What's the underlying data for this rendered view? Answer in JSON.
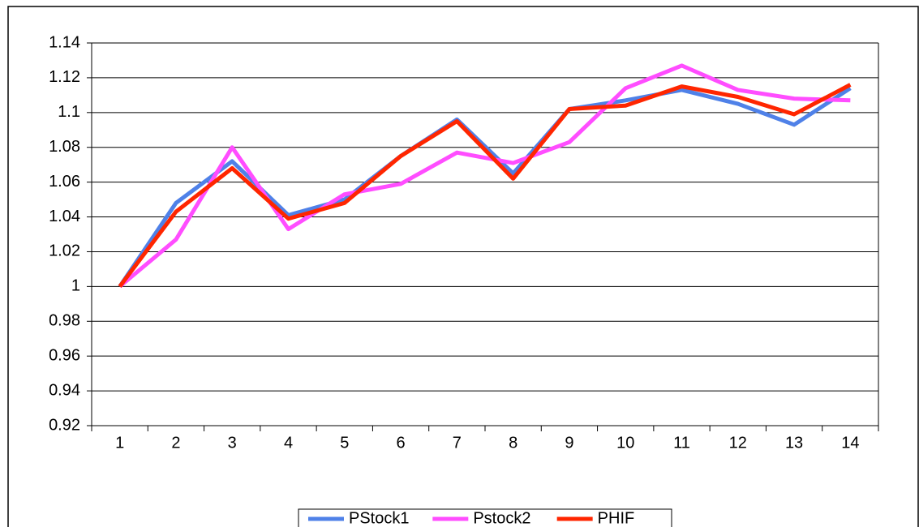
{
  "chart_data": {
    "type": "line",
    "categories": [
      "1",
      "2",
      "3",
      "4",
      "5",
      "6",
      "7",
      "8",
      "9",
      "10",
      "11",
      "12",
      "13",
      "14"
    ],
    "series": [
      {
        "name": "PStock1",
        "color": "#4f81e8",
        "values": [
          1.0,
          1.048,
          1.072,
          1.041,
          1.05,
          1.075,
          1.096,
          1.065,
          1.102,
          1.107,
          1.113,
          1.105,
          1.093,
          1.114
        ]
      },
      {
        "name": "Pstock2",
        "color": "#ff4dff",
        "values": [
          1.0,
          1.027,
          1.08,
          1.033,
          1.053,
          1.059,
          1.077,
          1.071,
          1.083,
          1.114,
          1.127,
          1.113,
          1.108,
          1.107
        ]
      },
      {
        "name": "PHIF",
        "color": "#ff2600",
        "values": [
          1.0,
          1.043,
          1.068,
          1.039,
          1.048,
          1.075,
          1.095,
          1.062,
          1.102,
          1.104,
          1.115,
          1.109,
          1.099,
          1.116
        ]
      }
    ],
    "ylim": [
      0.92,
      1.14
    ],
    "yticks": [
      0.92,
      0.94,
      0.96,
      0.98,
      1,
      1.02,
      1.04,
      1.06,
      1.08,
      1.1,
      1.12,
      1.14
    ],
    "grid": true,
    "legend": "bottom"
  }
}
